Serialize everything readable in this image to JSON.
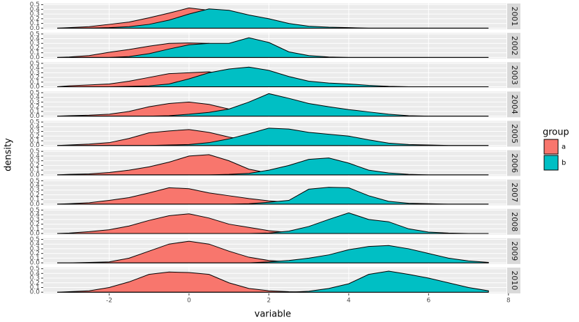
{
  "chart_data": {
    "type": "density-facets",
    "xlabel": "variable",
    "ylabel": "density",
    "legend_title": "group",
    "xlim": [
      -3.65,
      7.95
    ],
    "xticks": [
      -2,
      0,
      2,
      4,
      6,
      8
    ],
    "ylim": [
      -0.025,
      0.525
    ],
    "yticks": [
      {
        "value": 0,
        "label": "0.0"
      },
      0.1,
      0.2,
      0.3,
      0.4,
      0.5
    ],
    "grid": true,
    "series": [
      {
        "name": "a",
        "color": "#F8766D"
      },
      {
        "name": "b",
        "color": "#00BFC4"
      }
    ],
    "x": [
      -3.3,
      -3,
      -2.5,
      -2,
      -1.5,
      -1,
      -0.5,
      0,
      0.5,
      1,
      1.5,
      2,
      2.5,
      3,
      3.5,
      4,
      4.5,
      5,
      5.5,
      6,
      6.5,
      7,
      7.5
    ],
    "facets": [
      {
        "label": "2001",
        "values": [
          [
            0,
            0.01,
            0.03,
            0.08,
            0.13,
            0.22,
            0.32,
            0.43,
            0.38,
            0.24,
            0.12,
            0.05,
            0.02,
            0.01,
            0,
            0,
            0,
            0,
            0,
            0,
            0,
            0,
            0
          ],
          [
            0,
            0,
            0,
            0.01,
            0.03,
            0.08,
            0.17,
            0.3,
            0.41,
            0.38,
            0.28,
            0.2,
            0.1,
            0.04,
            0.02,
            0.01,
            0,
            0,
            0,
            0,
            0,
            0,
            0
          ]
        ]
      },
      {
        "label": "2002",
        "values": [
          [
            0,
            0.01,
            0.04,
            0.11,
            0.17,
            0.24,
            0.3,
            0.31,
            0.3,
            0.22,
            0.12,
            0.05,
            0.02,
            0.01,
            0,
            0,
            0,
            0,
            0,
            0,
            0,
            0,
            0
          ],
          [
            0,
            0,
            0,
            0,
            0.02,
            0.08,
            0.18,
            0.27,
            0.3,
            0.3,
            0.42,
            0.32,
            0.12,
            0.04,
            0.01,
            0,
            0,
            0,
            0,
            0,
            0,
            0,
            0
          ]
        ]
      },
      {
        "label": "2003",
        "values": [
          [
            0,
            0.02,
            0.04,
            0.06,
            0.12,
            0.2,
            0.28,
            0.3,
            0.32,
            0.25,
            0.12,
            0.05,
            0.02,
            0.01,
            0,
            0,
            0,
            0,
            0,
            0,
            0,
            0,
            0
          ],
          [
            0,
            0,
            0,
            0,
            0.01,
            0.02,
            0.06,
            0.17,
            0.3,
            0.38,
            0.42,
            0.35,
            0.22,
            0.12,
            0.08,
            0.06,
            0.03,
            0.01,
            0,
            0,
            0,
            0,
            0
          ]
        ]
      },
      {
        "label": "2004",
        "values": [
          [
            0,
            0.01,
            0.02,
            0.04,
            0.1,
            0.2,
            0.27,
            0.3,
            0.25,
            0.15,
            0.12,
            0.05,
            0.02,
            0.01,
            0,
            0,
            0,
            0,
            0,
            0,
            0,
            0,
            0
          ],
          [
            0,
            0,
            0,
            0,
            0,
            0,
            0.01,
            0.04,
            0.08,
            0.15,
            0.3,
            0.48,
            0.38,
            0.27,
            0.2,
            0.14,
            0.09,
            0.04,
            0.01,
            0,
            0,
            0,
            0
          ]
        ]
      },
      {
        "label": "2005",
        "values": [
          [
            0,
            0.01,
            0.03,
            0.06,
            0.15,
            0.27,
            0.31,
            0.34,
            0.28,
            0.18,
            0.1,
            0.06,
            0.03,
            0.01,
            0,
            0,
            0,
            0,
            0,
            0,
            0,
            0,
            0
          ],
          [
            0,
            0,
            0,
            0,
            0,
            0,
            0.01,
            0.02,
            0.06,
            0.14,
            0.25,
            0.37,
            0.35,
            0.28,
            0.24,
            0.2,
            0.12,
            0.05,
            0.02,
            0.01,
            0,
            0,
            0
          ]
        ]
      },
      {
        "label": "2006",
        "values": [
          [
            0,
            0.01,
            0.02,
            0.05,
            0.1,
            0.17,
            0.27,
            0.4,
            0.43,
            0.3,
            0.12,
            0.04,
            0.01,
            0,
            0,
            0,
            0,
            0,
            0,
            0,
            0,
            0,
            0
          ],
          [
            0,
            0,
            0,
            0,
            0,
            0,
            0,
            0,
            0,
            0.01,
            0.03,
            0.1,
            0.2,
            0.33,
            0.36,
            0.25,
            0.1,
            0.04,
            0.01,
            0,
            0,
            0,
            0
          ]
        ]
      },
      {
        "label": "2007",
        "values": [
          [
            0,
            0.01,
            0.03,
            0.08,
            0.14,
            0.24,
            0.35,
            0.33,
            0.24,
            0.18,
            0.12,
            0.07,
            0.04,
            0.02,
            0.01,
            0,
            0,
            0,
            0,
            0,
            0,
            0,
            0
          ],
          [
            0,
            0,
            0,
            0,
            0,
            0,
            0,
            0,
            0,
            0,
            0.01,
            0.04,
            0.08,
            0.32,
            0.36,
            0.35,
            0.18,
            0.06,
            0.02,
            0.01,
            0,
            0,
            0
          ]
        ]
      },
      {
        "label": "2008",
        "values": [
          [
            0,
            0.01,
            0.04,
            0.08,
            0.16,
            0.28,
            0.38,
            0.42,
            0.33,
            0.2,
            0.13,
            0.06,
            0.02,
            0.01,
            0,
            0,
            0,
            0,
            0,
            0,
            0,
            0,
            0
          ],
          [
            0,
            0,
            0,
            0,
            0,
            0,
            0,
            0,
            0,
            0,
            0,
            0.01,
            0.05,
            0.15,
            0.3,
            0.44,
            0.3,
            0.25,
            0.1,
            0.03,
            0.01,
            0,
            0
          ]
        ]
      },
      {
        "label": "2009",
        "values": [
          [
            0,
            0,
            0.01,
            0.02,
            0.1,
            0.25,
            0.4,
            0.46,
            0.4,
            0.25,
            0.12,
            0.05,
            0.02,
            0.01,
            0,
            0,
            0,
            0,
            0,
            0,
            0,
            0,
            0
          ],
          [
            0,
            0,
            0,
            0,
            0,
            0,
            0,
            0,
            0,
            0,
            0,
            0.02,
            0.05,
            0.1,
            0.17,
            0.28,
            0.35,
            0.37,
            0.3,
            0.2,
            0.1,
            0.04,
            0.01
          ]
        ]
      },
      {
        "label": "2010",
        "values": [
          [
            0,
            0.01,
            0.03,
            0.1,
            0.22,
            0.38,
            0.43,
            0.42,
            0.38,
            0.2,
            0.08,
            0.03,
            0.01,
            0,
            0,
            0,
            0,
            0,
            0,
            0,
            0,
            0,
            0
          ],
          [
            0,
            0,
            0,
            0,
            0,
            0,
            0,
            0,
            0,
            0,
            0,
            0,
            0,
            0.02,
            0.08,
            0.18,
            0.38,
            0.45,
            0.38,
            0.3,
            0.2,
            0.1,
            0.03
          ]
        ]
      }
    ]
  }
}
